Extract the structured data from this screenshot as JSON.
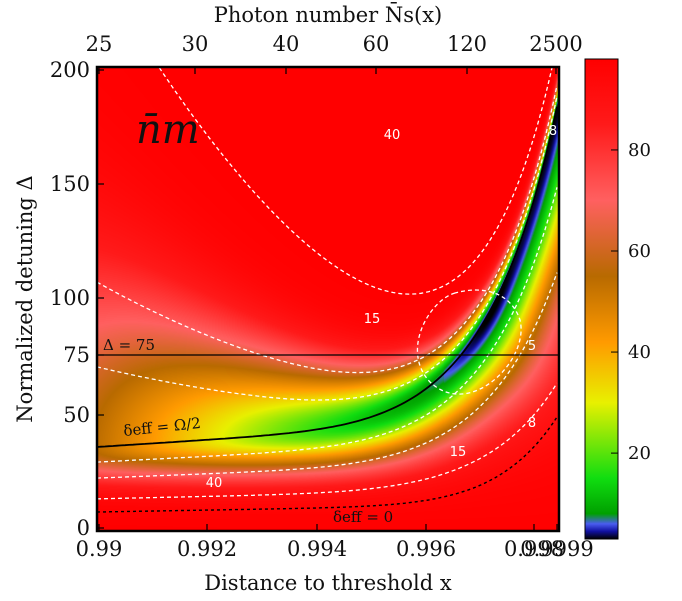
{
  "chart_data": {
    "type": "heatmap",
    "title": "n̄m",
    "xlabel": "Distance to threshold x",
    "ylabel": "Normalized detuning Δ",
    "top_xlabel": "Photon number N̄s(x)",
    "x_ticks": [
      "0.99",
      "0.992",
      "0.994",
      "0.996",
      "0.998",
      "0.9999"
    ],
    "y_ticks": [
      "0",
      "50",
      "75",
      "100",
      "150",
      "200"
    ],
    "top_ticks": [
      "25",
      "30",
      "40",
      "60",
      "120",
      "2500"
    ],
    "colorbar_ticks": [
      "20",
      "40",
      "60",
      "80"
    ],
    "colorbar_range": [
      3,
      98
    ],
    "colormap": [
      {
        "value": 3,
        "color": "#000000"
      },
      {
        "value": 4.5,
        "color": "#1010a0"
      },
      {
        "value": 6,
        "color": "#4a5cf0"
      },
      {
        "value": 8,
        "color": "#00a000"
      },
      {
        "value": 15,
        "color": "#10dd10"
      },
      {
        "value": 30,
        "color": "#e8f000"
      },
      {
        "value": 42,
        "color": "#ff9a00"
      },
      {
        "value": 55,
        "color": "#b86a00"
      },
      {
        "value": 70,
        "color": "#ff6060"
      },
      {
        "value": 85,
        "color": "#ff1a1a"
      },
      {
        "value": 98,
        "color": "#ff0000"
      }
    ],
    "contour_levels": [
      "40",
      "15",
      "8",
      "5",
      "8",
      "15",
      "40"
    ],
    "annotations": {
      "delta_line": "Δ = 75",
      "delta_line_value": 75,
      "omega_curve": "δeff = Ω/2",
      "zero_curve": "δeff = 0"
    }
  }
}
